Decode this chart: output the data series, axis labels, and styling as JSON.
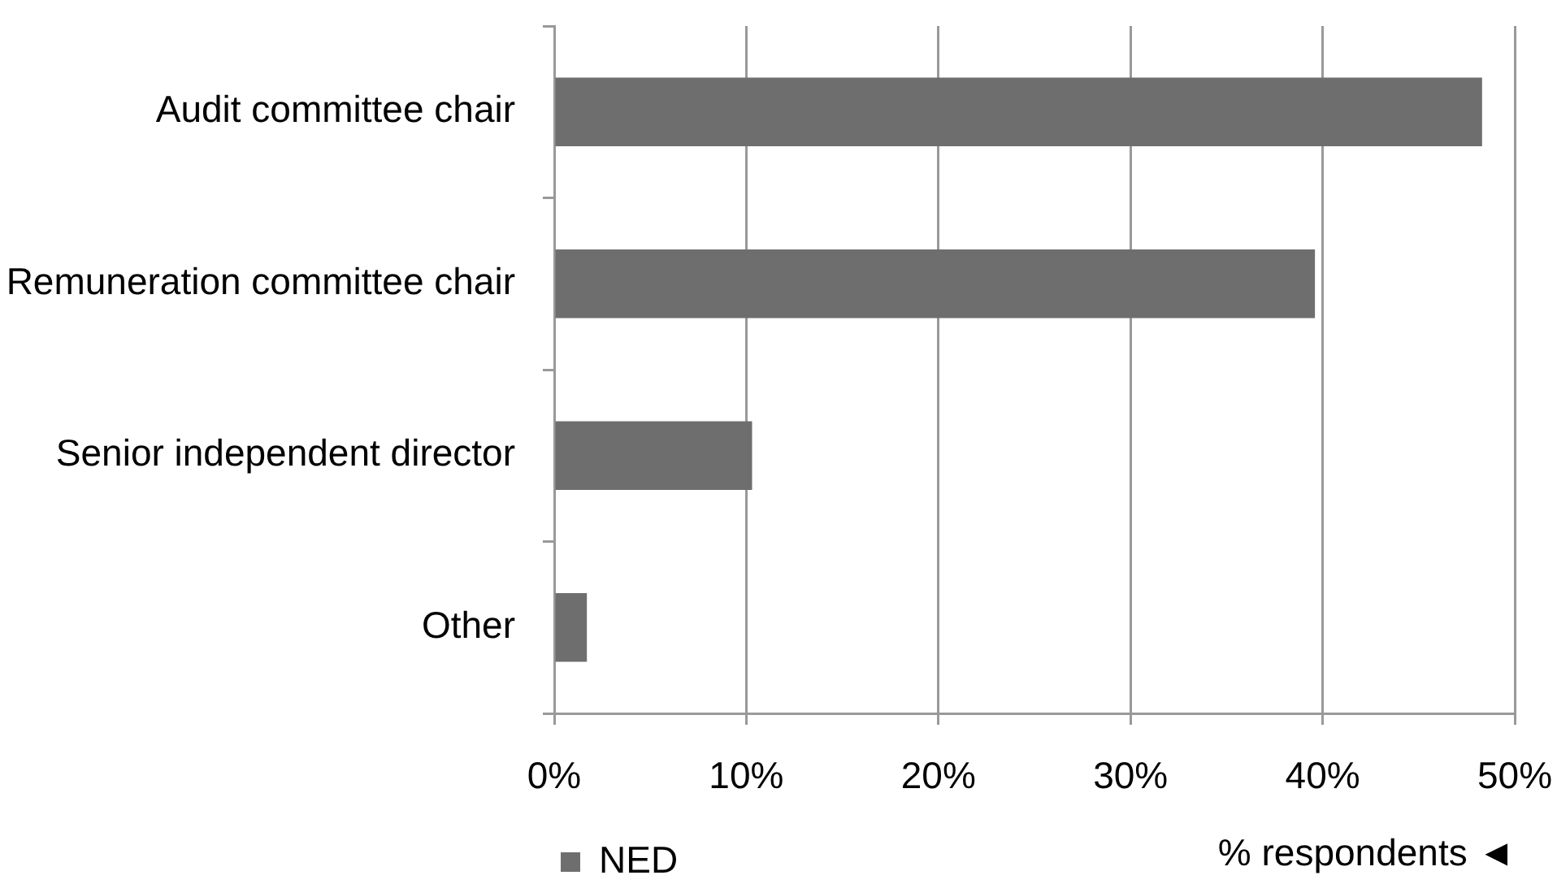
{
  "chart_data": {
    "type": "bar",
    "orientation": "horizontal",
    "categories": [
      "Audit committee chair",
      "Remuneration committee chair",
      "Senior independent director",
      "Other"
    ],
    "series": [
      {
        "name": "NED",
        "color": "#6e6e6e",
        "values": [
          48.3,
          39.6,
          10.3,
          1.7
        ]
      }
    ],
    "xlim": [
      0,
      50
    ],
    "xticks": [
      {
        "value": 0,
        "label": "0%"
      },
      {
        "value": 10,
        "label": "10%"
      },
      {
        "value": 20,
        "label": "20%"
      },
      {
        "value": 30,
        "label": "30%"
      },
      {
        "value": 40,
        "label": "40%"
      },
      {
        "value": 50,
        "label": "50%"
      }
    ],
    "xlabel": "% respondents ◄",
    "grid": "x",
    "legend": "bottom left"
  }
}
